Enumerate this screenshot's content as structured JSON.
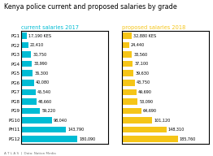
{
  "title": "Kenya police current and proposed salaries by grade",
  "annotations": [
    "A T L A S  |  Data: Nation Media"
  ],
  "chart_data": [
    {
      "type": "bar",
      "orientation": "horizontal",
      "title": "current salaries 2017",
      "categories": [
        "PG1",
        "PG2",
        "PG3",
        "PG4",
        "PG5",
        "PG6",
        "PG7",
        "PG8",
        "PG9",
        "PG10",
        "PH11",
        "PG12"
      ],
      "values": [
        17190,
        22410,
        30750,
        33990,
        36300,
        40080,
        45540,
        48660,
        59220,
        98040,
        143790,
        180090
      ],
      "value_labels": [
        "17,190 KES",
        "22,410",
        "30,750",
        "33,990",
        "36,300",
        "40,080",
        "45,540",
        "48,660",
        "59,220",
        "98,040",
        "143,790",
        "180,090"
      ],
      "color": "#00BCD4",
      "data_labels": true,
      "grid": false,
      "tick_labels": "y",
      "xlim": [
        0,
        279139.5
      ],
      "xticks": []
    },
    {
      "type": "bar",
      "orientation": "horizontal",
      "title": "proposed salaries 2018",
      "categories": [
        "PG1",
        "PG2",
        "PG3",
        "PG4",
        "PG5",
        "PG6",
        "PG7",
        "PG8",
        "PG9",
        "PG10",
        "PH11",
        "PG12"
      ],
      "values": [
        32880,
        24440,
        33560,
        37100,
        39630,
        43750,
        49690,
        53090,
        64690,
        101120,
        148310,
        185760
      ],
      "value_labels": [
        "32,880 KES",
        "24,440",
        "33,560",
        "37,100",
        "39,630",
        "43,750",
        "49,690",
        "53,090",
        "64,690",
        "101,120",
        "148,310",
        "185,760"
      ],
      "color": "#F5C518",
      "data_labels": true,
      "grid": false,
      "tick_labels": false,
      "xlim": [
        0,
        287928.0
      ],
      "xticks": []
    }
  ]
}
